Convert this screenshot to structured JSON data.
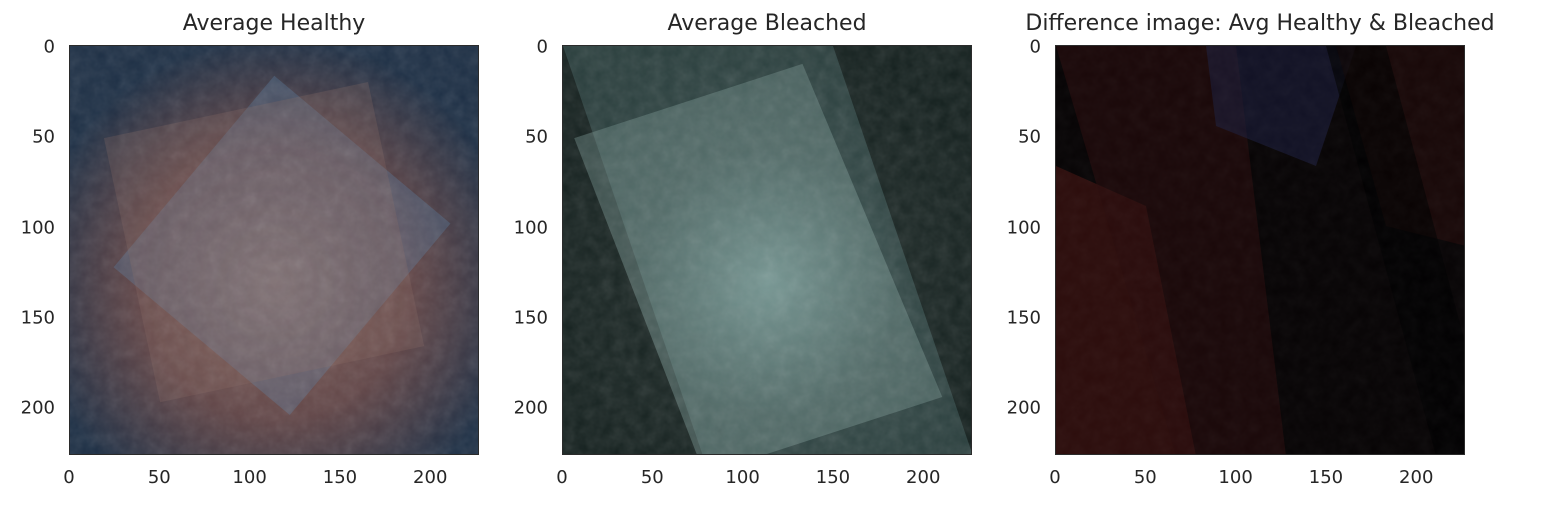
{
  "chart_data": [
    {
      "type": "image",
      "title": "Average Healthy",
      "xlim": [
        0,
        227
      ],
      "ylim": [
        227,
        0
      ],
      "xticks": [
        0,
        50,
        100,
        150,
        200
      ],
      "yticks": [
        0,
        50,
        100,
        150,
        200
      ],
      "palette": {
        "background": "#1d2f45",
        "center": "#8a6a62",
        "highlight": "#5a8cb8",
        "lower": "#6e4a48"
      }
    },
    {
      "type": "image",
      "title": "Average Bleached",
      "xlim": [
        0,
        227
      ],
      "ylim": [
        227,
        0
      ],
      "xticks": [
        0,
        50,
        100,
        150,
        200
      ],
      "yticks": [
        0,
        50,
        100,
        150,
        200
      ],
      "palette": {
        "background": "#15211f",
        "center": "#9bbfba",
        "highlight": "#79a9aa",
        "lower": "#2a3633"
      }
    },
    {
      "type": "image",
      "title": "Difference image: Avg Healthy & Bleached",
      "xlim": [
        0,
        227
      ],
      "ylim": [
        227,
        0
      ],
      "xticks": [
        0,
        50,
        100,
        150,
        200
      ],
      "yticks": [
        0,
        50,
        100,
        150,
        200
      ],
      "palette": {
        "background": "#070405",
        "center": "#2a0c0c",
        "highlight": "#4a1612",
        "blue": "#1a1d3a"
      }
    }
  ]
}
